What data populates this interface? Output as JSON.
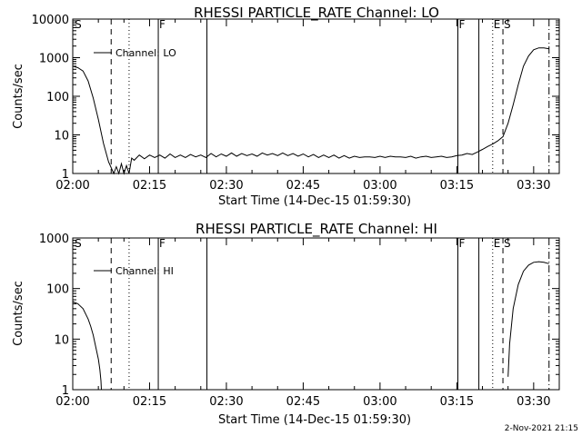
{
  "footer": {
    "date_stamp": "2-Nov-2021 21:15"
  },
  "chart_data": [
    {
      "type": "line",
      "title": "RHESSI PARTICLE_RATE Channel: LO",
      "xlabel": "Start Time (14-Dec-15 01:59:30)",
      "ylabel": "Counts/sec",
      "xlim_min": [
        0,
        95
      ],
      "ylim": [
        1,
        10000
      ],
      "yscale": "log",
      "grid": false,
      "legend": {
        "placement": "top-left",
        "label": "Channel: LO"
      },
      "x_ticks": [
        "02:00",
        "02:15",
        "02:30",
        "02:45",
        "03:00",
        "03:15",
        "03:30"
      ],
      "y_ticks": [
        "1",
        "10",
        "100",
        "1000",
        "10000"
      ],
      "markers": [
        {
          "label": "S",
          "x": 0.2,
          "style": "text"
        },
        {
          "label": "",
          "x": 7.5,
          "style": "dashed"
        },
        {
          "label": "",
          "x": 11,
          "style": "dotted"
        },
        {
          "label": "F",
          "x": 16.7,
          "style": "solid"
        },
        {
          "label": "",
          "x": 26.2,
          "style": "solid"
        },
        {
          "label": "F",
          "x": 75.2,
          "style": "solid"
        },
        {
          "label": "",
          "x": 79.3,
          "style": "solid"
        },
        {
          "label": "E",
          "x": 82,
          "style": "dotted"
        },
        {
          "label": "S",
          "x": 84,
          "style": "dashed"
        },
        {
          "label": "",
          "x": 93,
          "style": "dashdot"
        }
      ],
      "series": [
        {
          "x": [
            0,
            1,
            2,
            3,
            4,
            5,
            6,
            7,
            8,
            8.5,
            9,
            9.5,
            10,
            10.5,
            11,
            11.5,
            12,
            13,
            14,
            15,
            16,
            17,
            18,
            19,
            20,
            21,
            22,
            23,
            24,
            25,
            26,
            27,
            28,
            29,
            30,
            31,
            32,
            33,
            34,
            35,
            36,
            37,
            38,
            39,
            40,
            41,
            42,
            43,
            44,
            45,
            46,
            47,
            48,
            49,
            50,
            51,
            52,
            53,
            54,
            55,
            56,
            57,
            58,
            59,
            60,
            61,
            62,
            63,
            64,
            65,
            66,
            67,
            68,
            69,
            70,
            71,
            72,
            73,
            74,
            75,
            76,
            77,
            78,
            79,
            80,
            81,
            82,
            83,
            84,
            85,
            86,
            87,
            88,
            89,
            90,
            91,
            92,
            93
          ],
          "values": [
            600,
            550,
            450,
            250,
            90,
            25,
            6,
            2,
            1,
            1.5,
            1,
            1.8,
            1,
            1.6,
            1,
            2.5,
            2.2,
            3,
            2.4,
            3,
            2.6,
            3,
            2.5,
            3.2,
            2.6,
            3,
            2.6,
            3.1,
            2.7,
            3,
            2.6,
            3.3,
            2.7,
            3.2,
            2.8,
            3.4,
            2.8,
            3.3,
            2.9,
            3.2,
            2.8,
            3.4,
            3,
            3.3,
            2.9,
            3.4,
            2.9,
            3.3,
            2.8,
            3.2,
            2.7,
            3.1,
            2.6,
            3,
            2.6,
            3,
            2.5,
            2.9,
            2.5,
            2.8,
            2.6,
            2.7,
            2.7,
            2.6,
            2.8,
            2.6,
            2.8,
            2.7,
            2.7,
            2.6,
            2.8,
            2.5,
            2.7,
            2.8,
            2.6,
            2.7,
            2.8,
            2.6,
            2.7,
            2.9,
            3,
            3.3,
            3.1,
            3.6,
            4.2,
            5,
            5.8,
            7,
            9,
            20,
            60,
            200,
            600,
            1100,
            1600,
            1800,
            1800,
            1700
          ]
        }
      ]
    },
    {
      "type": "line",
      "title": "RHESSI PARTICLE_RATE Channel: HI",
      "xlabel": "Start Time (14-Dec-15 01:59:30)",
      "ylabel": "Counts/sec",
      "xlim_min": [
        0,
        95
      ],
      "ylim": [
        1,
        1000
      ],
      "yscale": "log",
      "grid": false,
      "legend": {
        "placement": "top-left",
        "label": "Channel: HI"
      },
      "x_ticks": [
        "02:00",
        "02:15",
        "02:30",
        "02:45",
        "03:00",
        "03:15",
        "03:30"
      ],
      "y_ticks": [
        "1",
        "10",
        "100",
        "1000"
      ],
      "markers": [
        {
          "label": "S",
          "x": 0.2,
          "style": "text"
        },
        {
          "label": "",
          "x": 7.5,
          "style": "dashed"
        },
        {
          "label": "",
          "x": 11,
          "style": "dotted"
        },
        {
          "label": "F",
          "x": 16.7,
          "style": "solid"
        },
        {
          "label": "",
          "x": 26.2,
          "style": "solid"
        },
        {
          "label": "F",
          "x": 75.2,
          "style": "solid"
        },
        {
          "label": "",
          "x": 79.3,
          "style": "solid"
        },
        {
          "label": "E",
          "x": 82,
          "style": "dotted"
        },
        {
          "label": "S",
          "x": 84,
          "style": "dashed"
        },
        {
          "label": "",
          "x": 93,
          "style": "dashdot"
        }
      ],
      "series": [
        {
          "segments": [
            {
              "x": [
                0,
                1,
                2,
                3,
                3.5,
                4,
                4.5,
                5,
                5.3,
                5.5,
                5.6
              ],
              "values": [
                55,
                50,
                40,
                25,
                18,
                12,
                7,
                4,
                2.5,
                1.5,
                1
              ]
            },
            {
              "x": [
                85,
                85.3,
                86,
                87,
                88,
                89,
                90,
                91,
                92,
                93
              ],
              "values": [
                1.8,
                8,
                40,
                120,
                220,
                290,
                330,
                340,
                330,
                310
              ]
            }
          ]
        }
      ]
    }
  ]
}
